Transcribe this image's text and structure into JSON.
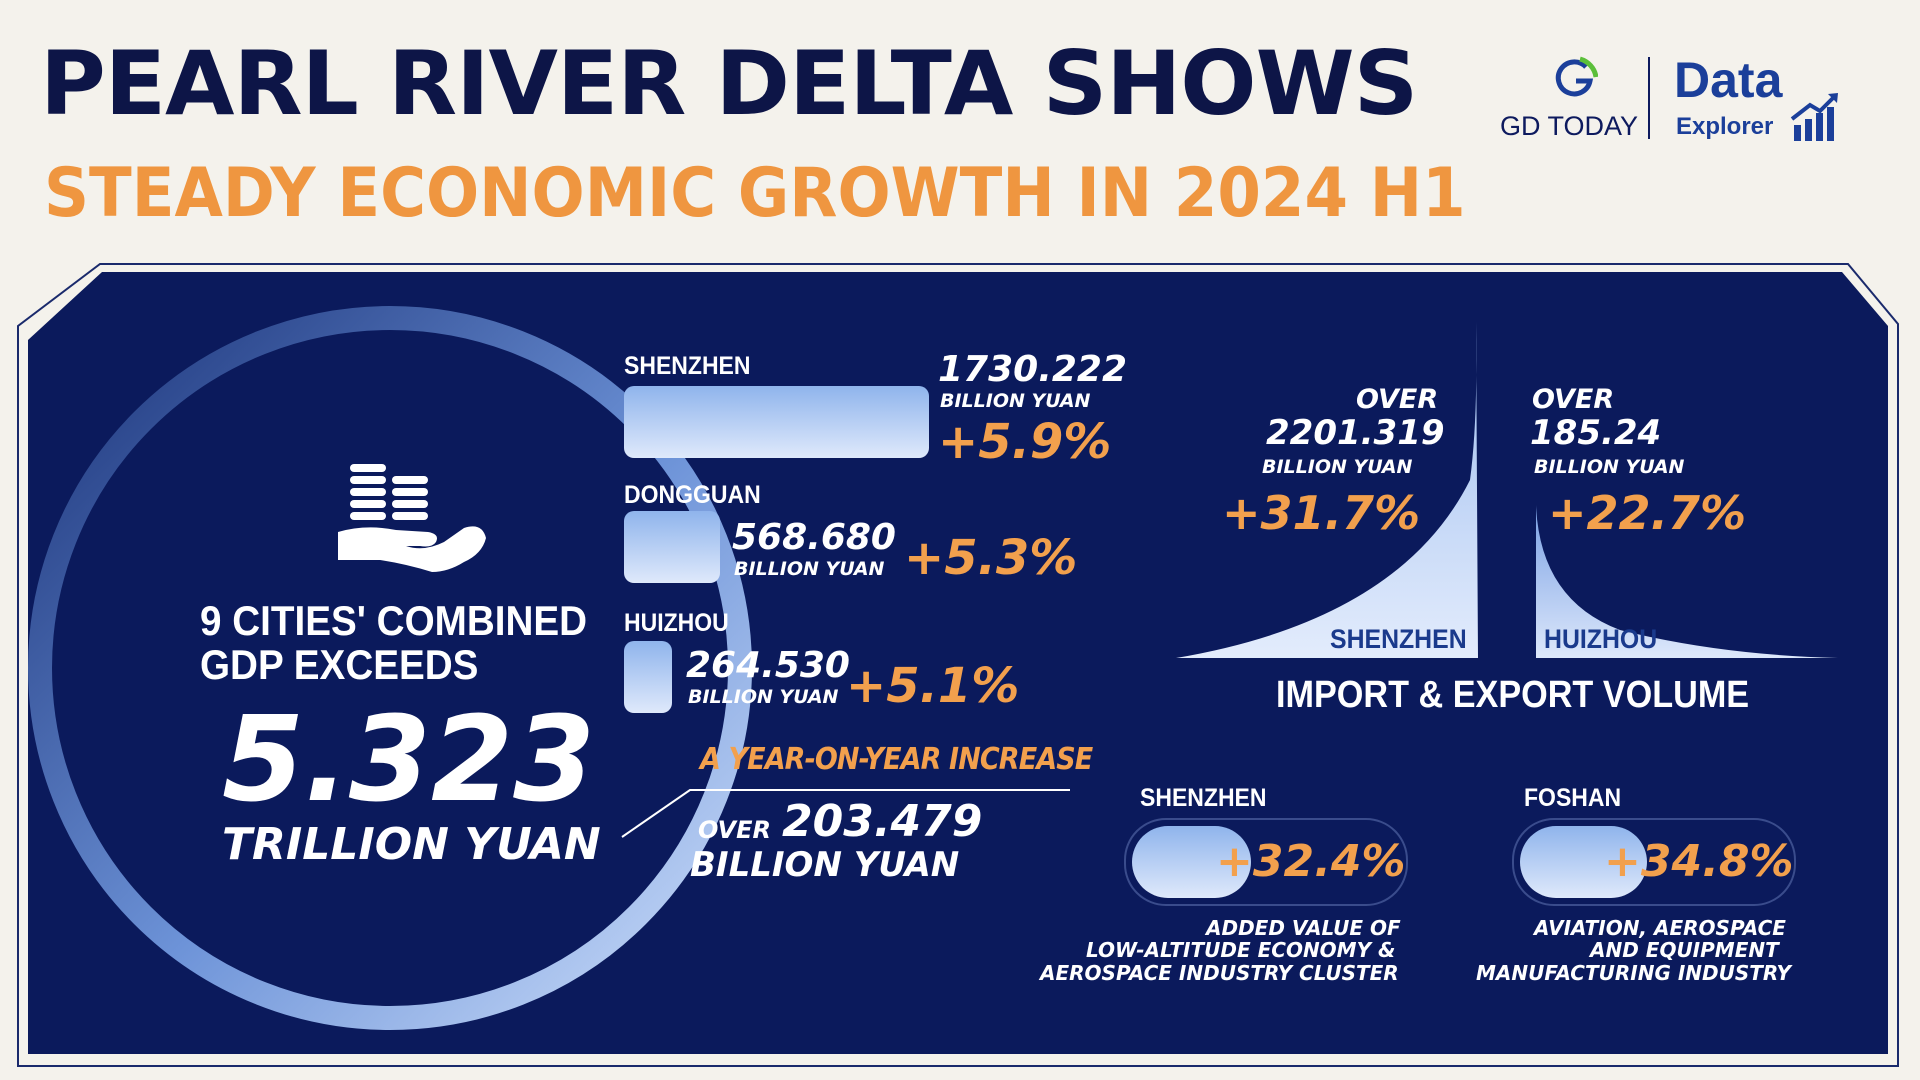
{
  "header": {
    "title_line1": "PEARL RIVER DELTA SHOWS",
    "title_line2": "STEADY ECONOMIC GROWTH IN 2024 H1"
  },
  "logo": {
    "brand": "GD TODAY",
    "product_line1": "Data",
    "product_line2": "Explorer"
  },
  "total": {
    "line1": "9 CITIES' COMBINED",
    "line2": "GDP EXCEEDS",
    "value": "5.323",
    "unit": "TRILLION YUAN"
  },
  "cities_gdp": [
    {
      "city": "SHENZHEN",
      "value": "1730.222",
      "unit": "BILLION YUAN",
      "growth": "+5.9%"
    },
    {
      "city": "DONGGUAN",
      "value": "568.680",
      "unit": "BILLION YUAN",
      "growth": "+5.3%"
    },
    {
      "city": "HUIZHOU",
      "value": "264.530",
      "unit": "BILLION YUAN",
      "growth": "+5.1%"
    }
  ],
  "yoy": {
    "label": "A YEAR-ON-YEAR INCREASE",
    "prefix": "OVER",
    "value": "203.479",
    "unit": "BILLION YUAN"
  },
  "trade": {
    "title": "IMPORT & EXPORT VOLUME",
    "items": [
      {
        "city": "SHENZHEN",
        "prefix": "OVER",
        "value": "2201.319",
        "unit": "BILLION YUAN",
        "growth": "+31.7%"
      },
      {
        "city": "HUIZHOU",
        "prefix": "OVER",
        "value": "185.24",
        "unit": "BILLION YUAN",
        "growth": "+22.7%"
      }
    ]
  },
  "industry": [
    {
      "city": "SHENZHEN",
      "growth": "+32.4%",
      "desc1": "ADDED VALUE OF",
      "desc2": "LOW-ALTITUDE ECONOMY &",
      "desc3": "AEROSPACE INDUSTRY CLUSTER",
      "fill_fraction": 0.45
    },
    {
      "city": "FOSHAN",
      "growth": "+34.8%",
      "desc1": "AVIATION, AEROSPACE",
      "desc2": "AND EQUIPMENT",
      "desc3": "MANUFACTURING INDUSTRY",
      "fill_fraction": 0.48
    }
  ],
  "colors": {
    "navy": "#0b1a5c",
    "orange": "#f2a04d",
    "title_dark": "#0d1547",
    "background": "#f4f2ec"
  }
}
